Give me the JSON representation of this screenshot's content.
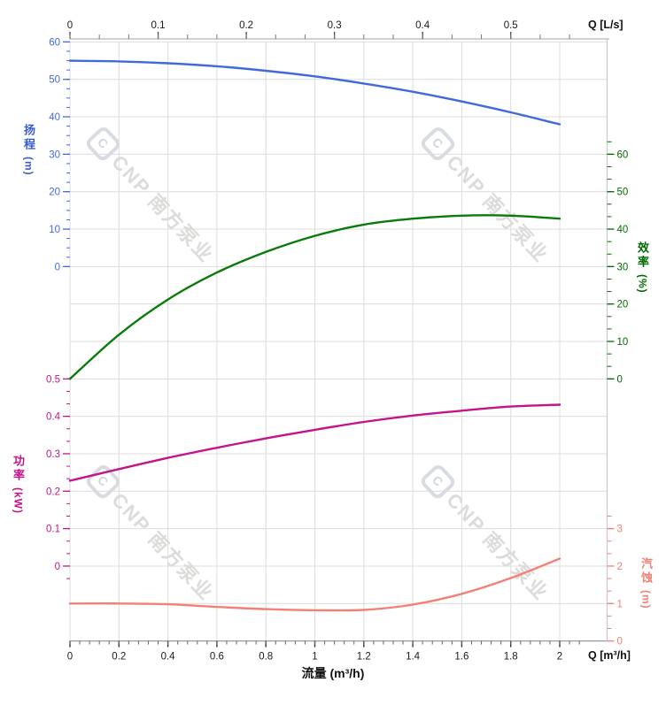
{
  "figure": {
    "kind": "pump-performance-curves",
    "background": "#ffffff",
    "grid_color": "#dcdcdc",
    "spine_color": "#c2c2c2",
    "watermark": {
      "logo_letter": "C",
      "text": "CNP 南方泵业"
    }
  },
  "axes": {
    "flow_bottom": {
      "title": "流量 (m³/h)",
      "unit_label": "Q [m³/h]",
      "tick_labels": [
        "0",
        "0.2",
        "0.4",
        "0.6",
        "0.8",
        "1",
        "1.2",
        "1.4",
        "1.6",
        "1.8",
        "2"
      ],
      "tick_values": [
        0,
        0.2,
        0.4,
        0.6,
        0.8,
        1,
        1.2,
        1.4,
        1.6,
        1.8,
        2
      ],
      "range": [
        0,
        2
      ],
      "color": "#1a1a1a"
    },
    "flow_top": {
      "unit_label": "Q [L/s]",
      "tick_labels": [
        "0",
        "0.1",
        "0.2",
        "0.3",
        "0.4",
        "0.5"
      ],
      "tick_values": [
        0,
        0.1,
        0.2,
        0.3,
        0.4,
        0.5
      ],
      "range": [
        0,
        0.5556
      ],
      "color": "#1a1a1a"
    },
    "head_left": {
      "title": "扬程",
      "unit": "(m)",
      "tick_labels": [
        "60",
        "50",
        "40",
        "30",
        "20",
        "10",
        "0"
      ],
      "tick_values": [
        60,
        50,
        40,
        30,
        20,
        10,
        0
      ],
      "range": [
        0,
        60
      ],
      "color": "#4169dc"
    },
    "efficiency_right": {
      "title": "效率",
      "unit": "(%)",
      "tick_labels": [
        "60",
        "50",
        "40",
        "30",
        "20",
        "10",
        "0"
      ],
      "tick_values": [
        60,
        50,
        40,
        30,
        20,
        10,
        0
      ],
      "range": [
        0,
        60
      ],
      "color": "#006b00"
    },
    "power_left": {
      "title": "功率",
      "unit": "(kW)",
      "tick_labels": [
        "0.5",
        "0.4",
        "0.3",
        "0.2",
        "0.1",
        "0"
      ],
      "tick_values": [
        0.5,
        0.4,
        0.3,
        0.2,
        0.1,
        0
      ],
      "range": [
        0,
        0.5
      ],
      "color": "#c4148c"
    },
    "npsh_right": {
      "title": "汽蚀",
      "unit": "(m)",
      "tick_labels": [
        "3",
        "2",
        "1",
        "0"
      ],
      "tick_values": [
        3,
        2,
        1,
        0
      ],
      "range": [
        0,
        3
      ],
      "color": "#f28074"
    }
  },
  "chart_data": {
    "type": "line",
    "title": "",
    "xlabel": "流量 (m³/h)",
    "x": [
      0,
      0.2,
      0.4,
      0.6,
      0.8,
      1.0,
      1.2,
      1.4,
      1.6,
      1.8,
      2.0
    ],
    "x_range_m3h": [
      0,
      2
    ],
    "x_range_Ls": [
      0,
      0.5556
    ],
    "grid": true,
    "legend": "none",
    "series": [
      {
        "name": "扬程 (head)",
        "unit": "m",
        "axis": "head_left",
        "color": "#4169dc",
        "values": [
          55.0,
          54.8,
          54.3,
          53.5,
          52.3,
          50.8,
          48.9,
          46.7,
          44.1,
          41.2,
          38.0
        ]
      },
      {
        "name": "效率 (efficiency)",
        "unit": "%",
        "axis": "efficiency_right",
        "color": "#0a7a0a",
        "values": [
          0,
          11.8,
          21.2,
          28.4,
          33.9,
          38.2,
          41.2,
          42.8,
          43.6,
          43.6,
          42.8
        ]
      },
      {
        "name": "功率 (power)",
        "unit": "kW",
        "axis": "power_left",
        "color": "#c4148c",
        "values": [
          0.228,
          0.259,
          0.289,
          0.316,
          0.341,
          0.364,
          0.385,
          0.402,
          0.415,
          0.426,
          0.431
        ]
      },
      {
        "name": "汽蚀 (NPSH)",
        "unit": "m",
        "axis": "npsh_right",
        "color": "#f28074",
        "values": [
          1.0,
          1.0,
          0.98,
          0.91,
          0.85,
          0.82,
          0.83,
          0.97,
          1.26,
          1.68,
          2.2
        ]
      }
    ]
  }
}
